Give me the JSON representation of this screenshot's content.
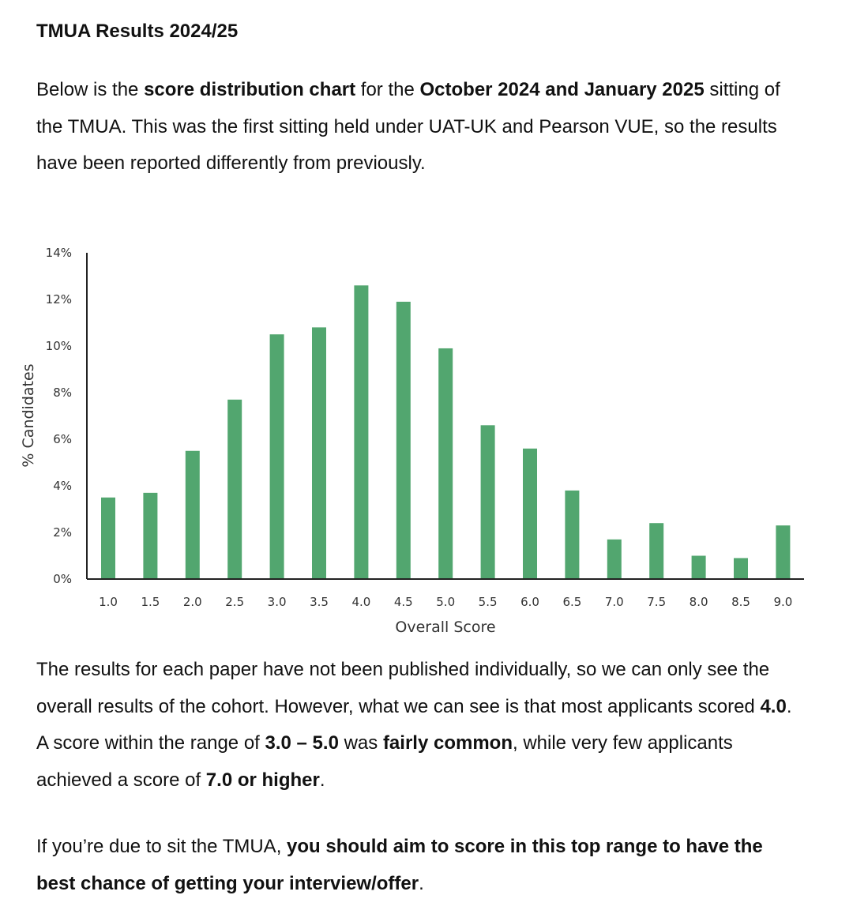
{
  "title": "TMUA Results 2024/25",
  "para1": [
    {
      "text": "Below is the ",
      "bold": false
    },
    {
      "text": "score distribution chart",
      "bold": true
    },
    {
      "text": " for the ",
      "bold": false
    },
    {
      "text": "October 2024 and January 2025",
      "bold": true
    },
    {
      "text": " sitting of the TMUA. This was the first sitting held under UAT-UK and Pearson VUE, so the results have been reported differently from previously.",
      "bold": false
    }
  ],
  "para2": [
    {
      "text": "The results for each paper have not been published individually, so we can only see the overall results of the cohort. However, what we can see is that most applicants scored ",
      "bold": false
    },
    {
      "text": "4.0",
      "bold": true
    },
    {
      "text": ". A score within the range of ",
      "bold": false
    },
    {
      "text": "3.0 – 5.0",
      "bold": true
    },
    {
      "text": " was ",
      "bold": false
    },
    {
      "text": "fairly common",
      "bold": true
    },
    {
      "text": ", while very few applicants achieved a score of ",
      "bold": false
    },
    {
      "text": "7.0 or higher",
      "bold": true
    },
    {
      "text": ".",
      "bold": false
    }
  ],
  "para3": [
    {
      "text": "If you’re due to sit the TMUA, ",
      "bold": false
    },
    {
      "text": "you should aim to score in this top range to have the best chance of getting your interview/offer",
      "bold": true
    },
    {
      "text": ".",
      "bold": false
    }
  ],
  "chart_data": {
    "type": "bar",
    "title": "",
    "xlabel": "Overall Score",
    "ylabel": "% Candidates",
    "categories": [
      "1.0",
      "1.5",
      "2.0",
      "2.5",
      "3.0",
      "3.5",
      "4.0",
      "4.5",
      "5.0",
      "5.5",
      "6.0",
      "6.5",
      "7.0",
      "7.5",
      "8.0",
      "8.5",
      "9.0"
    ],
    "values": [
      3.5,
      3.7,
      5.5,
      7.7,
      10.5,
      10.8,
      12.6,
      11.9,
      9.9,
      6.6,
      5.6,
      3.8,
      1.7,
      2.4,
      1.0,
      0.9,
      2.3
    ],
    "ylim": [
      0,
      14
    ],
    "yticks": [
      "0%",
      "2%",
      "4%",
      "6%",
      "8%",
      "10%",
      "12%",
      "14%"
    ],
    "grid": false,
    "bar_color": "#52a66f"
  }
}
